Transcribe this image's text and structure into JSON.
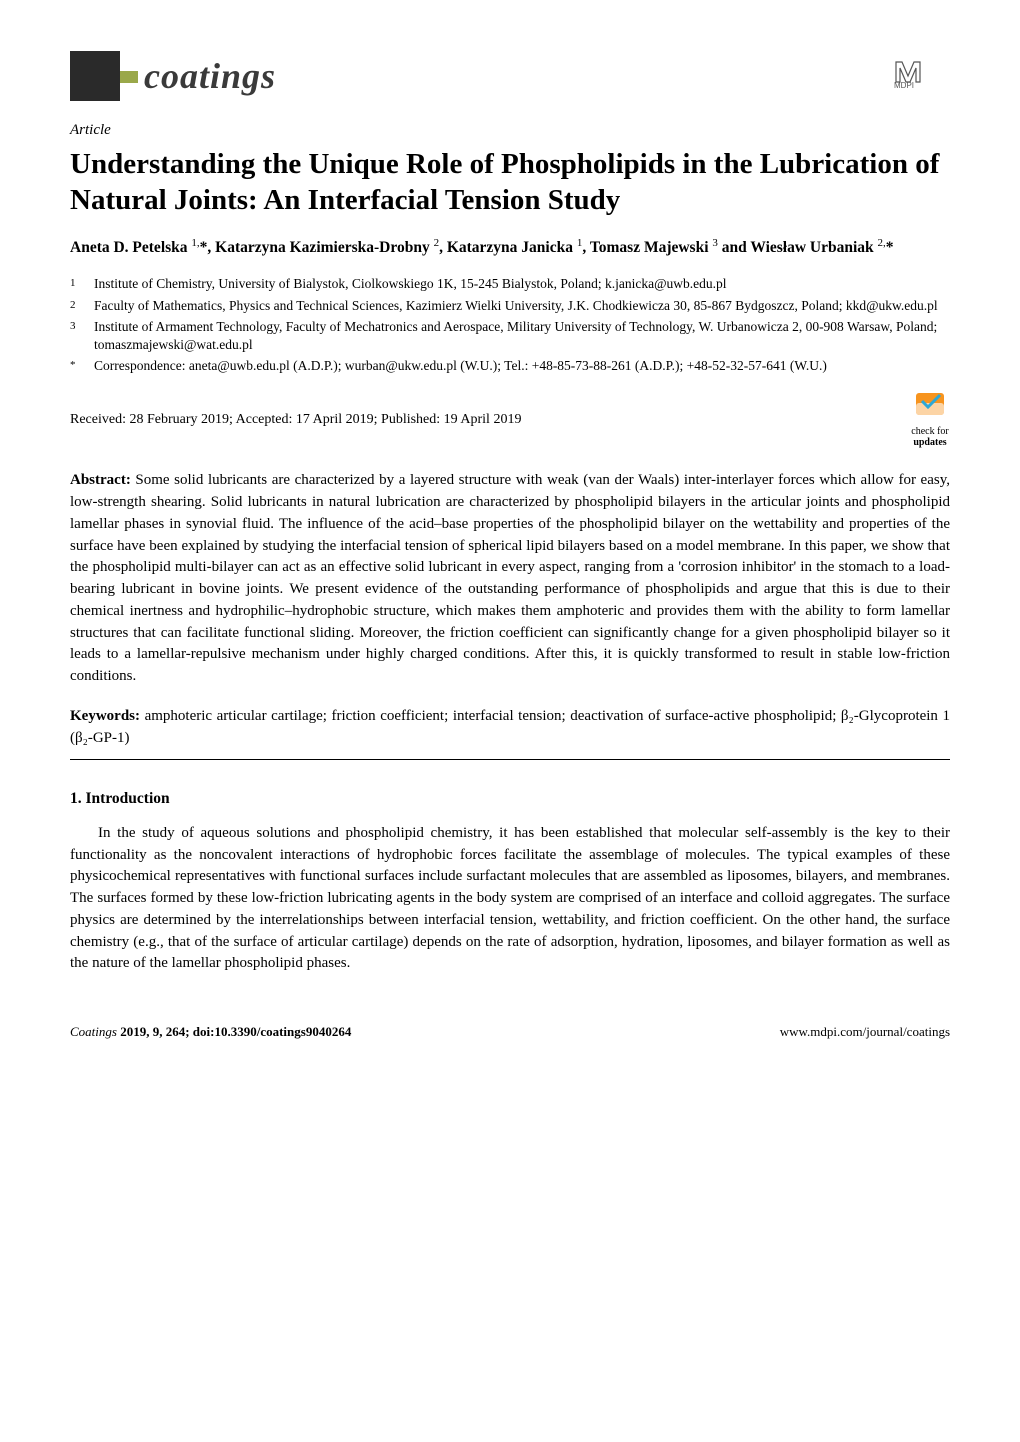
{
  "journal": {
    "name": "coatings",
    "publisher_logo_alt": "MDPI"
  },
  "article": {
    "type": "Article",
    "title": "Understanding the Unique Role of Phospholipids in the Lubrication of Natural Joints: An Interfacial Tension Study",
    "authors_html": "Aneta D. Petelska <sup>1,</sup>*, Katarzyna Kazimierska-Drobny <sup>2</sup>, Katarzyna Janicka <sup>1</sup>, Tomasz Majewski <sup>3</sup> and Wiesław Urbaniak <sup>2,</sup>*",
    "affiliations": [
      {
        "num": "1",
        "text": "Institute of Chemistry, University of Bialystok, Ciolkowskiego 1K, 15-245 Bialystok, Poland; k.janicka@uwb.edu.pl"
      },
      {
        "num": "2",
        "text": "Faculty of Mathematics, Physics and Technical Sciences, Kazimierz Wielki University, J.K. Chodkiewicza 30, 85-867 Bydgoszcz, Poland; kkd@ukw.edu.pl"
      },
      {
        "num": "3",
        "text": "Institute of Armament Technology, Faculty of Mechatronics and Aerospace, Military University of Technology, W. Urbanowicza 2, 00-908 Warsaw, Poland; tomaszmajewski@wat.edu.pl"
      },
      {
        "num": "*",
        "text": "Correspondence: aneta@uwb.edu.pl (A.D.P.); wurban@ukw.edu.pl (W.U.); Tel.: +48-85-73-88-261 (A.D.P.); +48-52-32-57-641 (W.U.)"
      }
    ],
    "dates": "Received: 28 February 2019; Accepted: 17 April 2019; Published: 19 April 2019",
    "updates_badge": {
      "line1": "check for",
      "line2": "updates"
    },
    "abstract_label": "Abstract:",
    "abstract": "Some solid lubricants are characterized by a layered structure with weak (van der Waals) inter-interlayer forces which allow for easy, low-strength shearing. Solid lubricants in natural lubrication are characterized by phospholipid bilayers in the articular joints and phospholipid lamellar phases in synovial fluid. The influence of the acid–base properties of the phospholipid bilayer on the wettability and properties of the surface have been explained by studying the interfacial tension of spherical lipid bilayers based on a model membrane. In this paper, we show that the phospholipid multi-bilayer can act as an effective solid lubricant in every aspect, ranging from a 'corrosion inhibitor' in the stomach to a load-bearing lubricant in bovine joints. We present evidence of the outstanding performance of phospholipids and argue that this is due to their chemical inertness and hydrophilic–hydrophobic structure, which makes them amphoteric and provides them with the ability to form lamellar structures that can facilitate functional sliding. Moreover, the friction coefficient can significantly change for a given phospholipid bilayer so it leads to a lamellar-repulsive mechanism under highly charged conditions. After this, it is quickly transformed to result in stable low-friction conditions.",
    "keywords_label": "Keywords:",
    "keywords": "amphoteric articular cartilage; friction coefficient; interfacial tension; deactivation of surface-active phospholipid; β₂-Glycoprotein 1 (β₂-GP-1)"
  },
  "sections": {
    "intro_heading": "1. Introduction",
    "intro_para": "In the study of aqueous solutions and phospholipid chemistry, it has been established that molecular self-assembly is the key to their functionality as the noncovalent interactions of hydrophobic forces facilitate the assemblage of molecules. The typical examples of these physicochemical representatives with functional surfaces include surfactant molecules that are assembled as liposomes, bilayers, and membranes. The surfaces formed by these low-friction lubricating agents in the body system are comprised of an interface and colloid aggregates. The surface physics are determined by the interrelationships between interfacial tension, wettability, and friction coefficient. On the other hand, the surface chemistry (e.g., that of the surface of articular cartilage) depends on the rate of adsorption, hydration, liposomes, and bilayer formation as well as the nature of the lamellar phospholipid phases."
  },
  "footer": {
    "left_italic": "Coatings",
    "left_rest": " 2019, 9, 264; doi:10.3390/coatings9040264",
    "right": "www.mdpi.com/journal/coatings"
  },
  "colors": {
    "text": "#000000",
    "bg": "#ffffff",
    "logo_dark": "#2a2a2a",
    "logo_accent": "#9aa84a",
    "updates_orange": "#f7941e",
    "updates_check": "#2aa8d8"
  }
}
